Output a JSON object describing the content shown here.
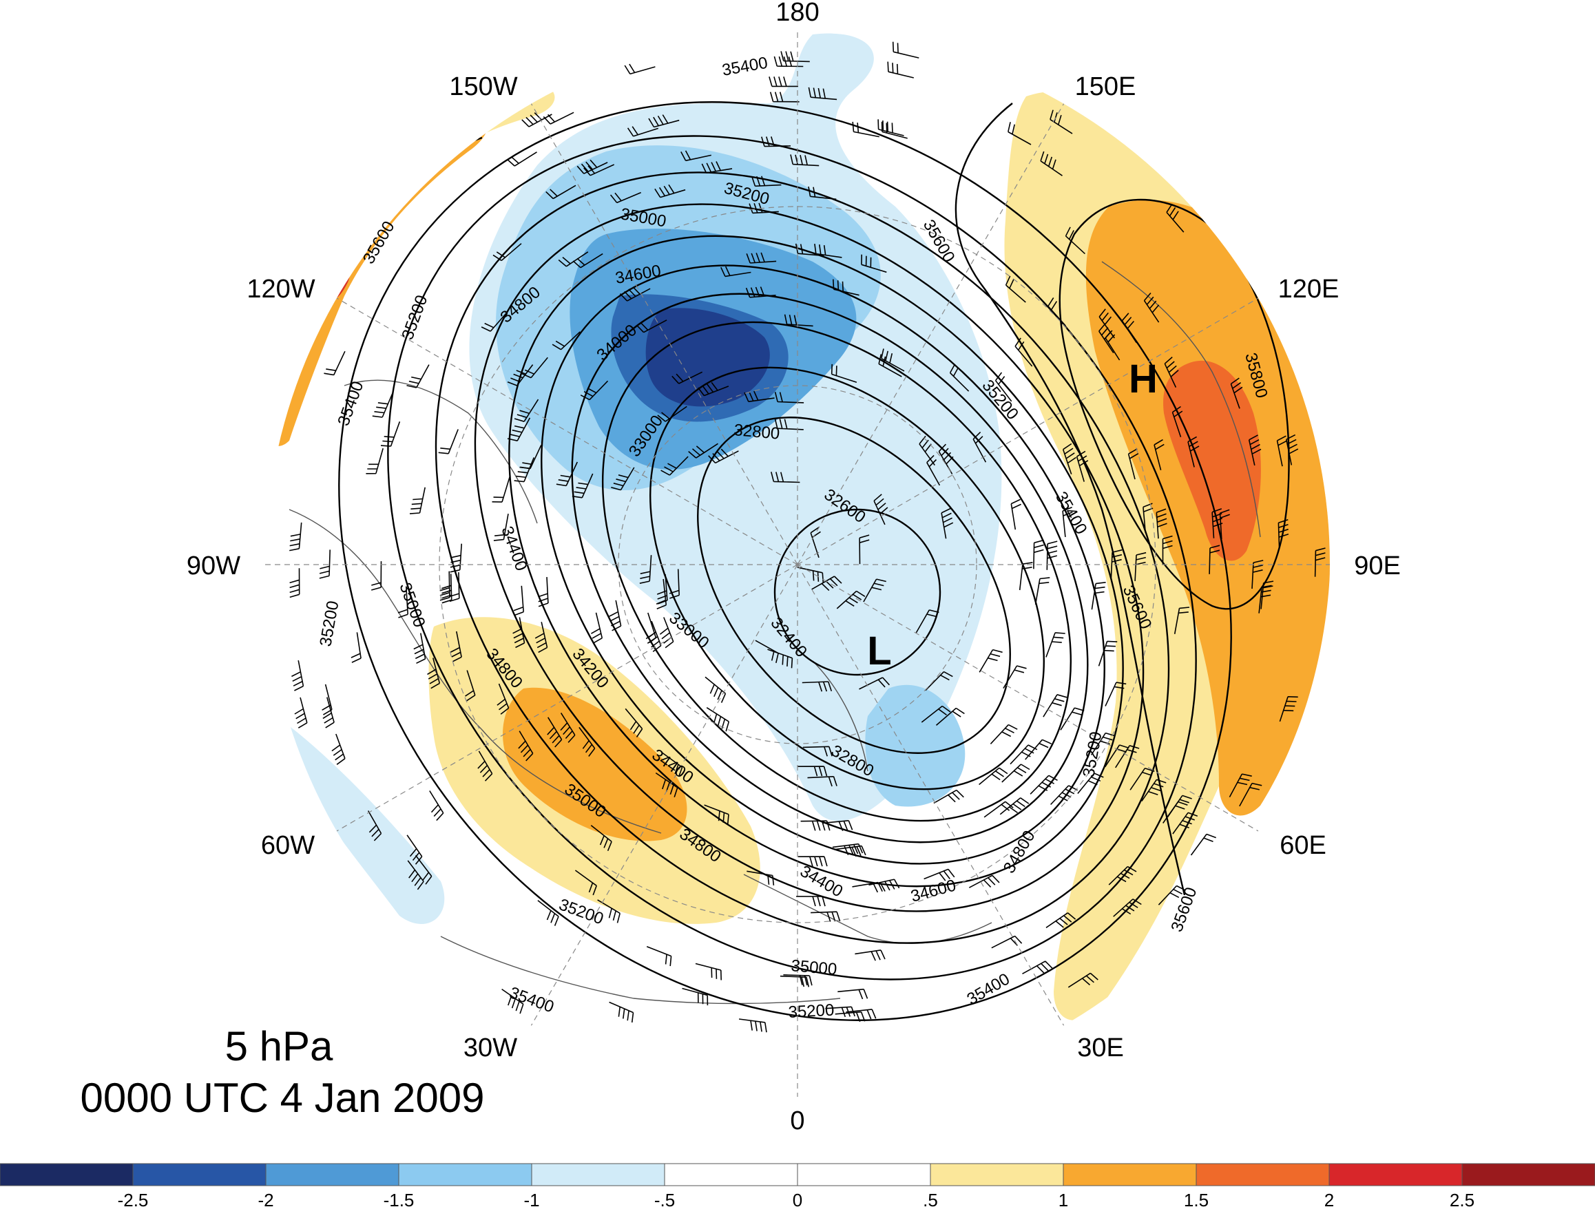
{
  "title": {
    "level": "5 hPa",
    "time": "0000 UTC 4 Jan 2009"
  },
  "longitude_labels": [
    "180",
    "150E",
    "120E",
    "90E",
    "60E",
    "30E",
    "0",
    "30W",
    "60W",
    "90W",
    "120W",
    "150W"
  ],
  "centers": {
    "low": "L",
    "high": "H"
  },
  "contour_labels": [
    "35400",
    "35200",
    "35000",
    "34600",
    "34800",
    "34000",
    "33000",
    "32800",
    "32600",
    "32400",
    "35600",
    "35200",
    "35400",
    "35600",
    "35800",
    "35200",
    "35600",
    "35600",
    "35200",
    "35400",
    "34400",
    "35000",
    "35200",
    "34800",
    "34200",
    "35000",
    "34400",
    "34800",
    "33000",
    "32800",
    "34400",
    "34600",
    "34800",
    "35200",
    "35000",
    "35200",
    "35400",
    "35400"
  ],
  "colorbar": {
    "tick_labels": [
      "-2.5",
      "-2",
      "-1.5",
      "-1",
      "-.5",
      "0",
      ".5",
      "1",
      "1.5",
      "2",
      "2.5"
    ],
    "colors": [
      "#1b2a63",
      "#2756a6",
      "#4f9ad6",
      "#8ccaf0",
      "#d1ebf8",
      "#ffffff",
      "#ffffff",
      "#fbe79a",
      "#f8a830",
      "#ef6a2a",
      "#d8262a",
      "#9a1a1d"
    ]
  },
  "shading_colors": {
    "blue_1": "#d4ecf8",
    "blue_2": "#9fd4f2",
    "blue_3": "#5aa7dd",
    "blue_4": "#2f6bb4",
    "blue_5": "#1f3f8c",
    "orange_1": "#fbe79a",
    "orange_2": "#f8aa30",
    "orange_3": "#ef6a2a",
    "red_1": "#d8332a"
  }
}
